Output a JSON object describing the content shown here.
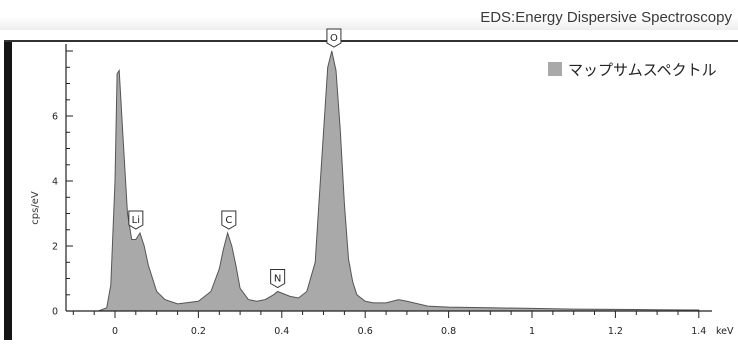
{
  "header": {
    "title": "EDS:Energy Dispersive Spectroscopy"
  },
  "colors": {
    "fill": "#a9a9a9",
    "outline": "#555555",
    "axis": "#222222"
  },
  "chart_data": {
    "type": "area",
    "title": "",
    "xlabel": "keV",
    "ylabel": "cps/eV",
    "xlim": [
      -0.1,
      1.45
    ],
    "ylim": [
      0,
      8.1
    ],
    "x_ticks": [
      0,
      0.2,
      0.4,
      0.6,
      0.8,
      1,
      1.2,
      1.4
    ],
    "x_tick_labels": [
      "0",
      "0.2",
      "0.4",
      "0.6",
      "0.8",
      "1",
      "1.2",
      "1.4"
    ],
    "y_ticks": [
      0,
      2,
      4,
      6
    ],
    "y_tick_labels": [
      "0",
      "2",
      "4",
      "6"
    ],
    "legend": {
      "placement": "top-right",
      "entries": [
        "マップサムスペクトル"
      ]
    },
    "series": [
      {
        "name": "マップサムスペクトル",
        "x": [
          -0.04,
          -0.02,
          -0.01,
          0,
          0.005,
          0.01,
          0.02,
          0.03,
          0.04,
          0.05,
          0.06,
          0.07,
          0.08,
          0.1,
          0.12,
          0.15,
          0.2,
          0.23,
          0.25,
          0.26,
          0.27,
          0.28,
          0.29,
          0.3,
          0.32,
          0.34,
          0.36,
          0.38,
          0.39,
          0.4,
          0.42,
          0.44,
          0.46,
          0.48,
          0.49,
          0.5,
          0.51,
          0.52,
          0.53,
          0.54,
          0.55,
          0.56,
          0.57,
          0.58,
          0.6,
          0.62,
          0.65,
          0.68,
          0.7,
          0.75,
          0.8,
          0.9,
          1.0,
          1.1,
          1.2,
          1.3,
          1.4
        ],
        "values": [
          0,
          0.1,
          0.8,
          4.0,
          7.3,
          7.4,
          5.2,
          3.0,
          2.2,
          2.2,
          2.4,
          2.0,
          1.4,
          0.6,
          0.35,
          0.22,
          0.3,
          0.6,
          1.3,
          1.9,
          2.4,
          2.0,
          1.4,
          0.7,
          0.35,
          0.3,
          0.35,
          0.5,
          0.6,
          0.55,
          0.45,
          0.4,
          0.6,
          1.5,
          3.5,
          5.5,
          7.5,
          8.0,
          7.4,
          5.6,
          3.3,
          1.6,
          0.9,
          0.5,
          0.3,
          0.25,
          0.25,
          0.35,
          0.3,
          0.15,
          0.12,
          0.1,
          0.08,
          0.06,
          0.05,
          0.04,
          0.03
        ]
      }
    ],
    "peak_labels": [
      {
        "text": "Li",
        "x": 0.05,
        "y": 2.4
      },
      {
        "text": "C",
        "x": 0.273,
        "y": 2.4
      },
      {
        "text": "N",
        "x": 0.39,
        "y": 0.6
      },
      {
        "text": "O",
        "x": 0.525,
        "y": 8.0
      }
    ]
  }
}
